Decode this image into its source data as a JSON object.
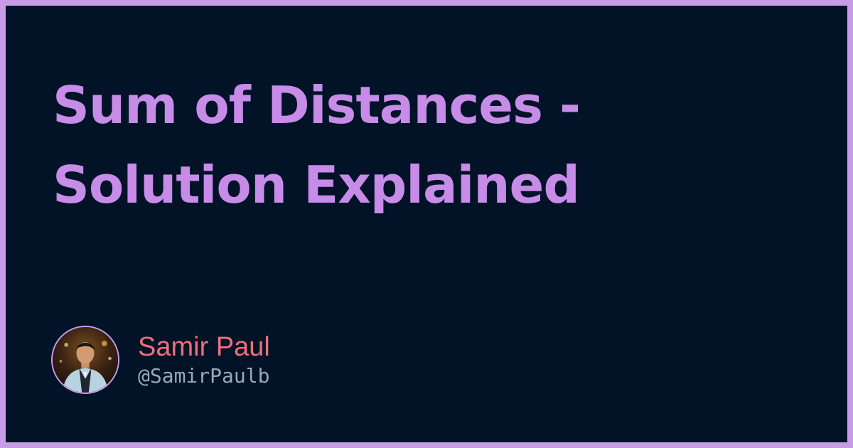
{
  "card": {
    "title": "Sum of Distances - Solution Explained"
  },
  "author": {
    "name": "Samir Paul",
    "handle": "@SamirPaulb"
  },
  "colors": {
    "frame": "#c89be6",
    "background": "#021327",
    "title": "#c78be8",
    "author_name": "#ef6f7a",
    "author_handle": "#9da8b6"
  },
  "icons": {
    "avatar": "author-photo"
  }
}
